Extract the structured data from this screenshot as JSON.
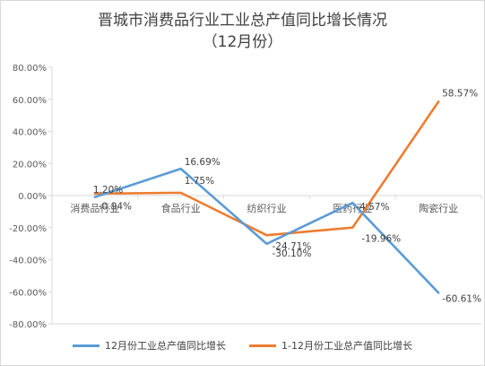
{
  "chart_data": {
    "type": "line",
    "title": "晋城市消费品行业工业总产值同比增长情况",
    "subtitle": "（12月份）",
    "categories": [
      "消费品行业",
      "食品行业",
      "纺织行业",
      "医药行业",
      "陶瓷行业"
    ],
    "series": [
      {
        "name": "12月份工业总产值同比增长",
        "values": [
          -0.94,
          16.69,
          -30.1,
          -4.57,
          -60.61
        ],
        "labels": [
          "-0.94%",
          "16.69%",
          "-30.10%",
          "-4.57%",
          "-60.61%"
        ],
        "color": "#5b9bd5"
      },
      {
        "name": "1-12月份工业总产值同比增长",
        "values": [
          1.2,
          1.75,
          -24.71,
          -19.96,
          58.57
        ],
        "labels": [
          "1.20%",
          "1.75%",
          "-24.71%",
          "-19.96%",
          "58.57%"
        ],
        "color": "#ed7d31"
      }
    ],
    "ylim": [
      -80,
      80
    ],
    "yticks": [
      "80.00%",
      "60.00%",
      "40.00%",
      "20.00%",
      "0.00%",
      "-20.00%",
      "-40.00%",
      "-60.00%",
      "-80.00%"
    ],
    "ytick_values": [
      80,
      60,
      40,
      20,
      0,
      -20,
      -40,
      -60,
      -80
    ],
    "grid": false,
    "legend_position": "bottom"
  }
}
